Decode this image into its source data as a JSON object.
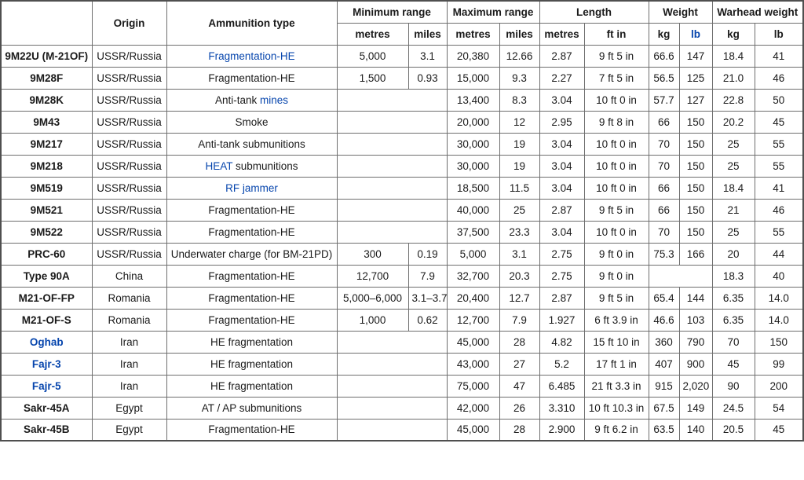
{
  "colors": {
    "link_blue": "#0645ad",
    "border_gray": "#6e6e6e",
    "outer_border": "#4f4f4f",
    "background": "#ffffff"
  },
  "header": {
    "blank": "",
    "origin": "Origin",
    "ammo_type": "Ammunition type",
    "min_range": "Minimum range",
    "max_range": "Maximum range",
    "length": "Length",
    "weight": "Weight",
    "warhead_weight": "Warhead weight",
    "sub_metres": "metres",
    "sub_miles": "miles",
    "sub_ftin": "ft in",
    "sub_kg": "kg",
    "sub_lb": "lb"
  },
  "rows": [
    {
      "name": "9M22U (M-21OF)",
      "name_link": false,
      "origin": "USSR/Russia",
      "type_parts": [
        {
          "text": "Fragmentation-HE",
          "link": true
        }
      ],
      "min": [
        "5,000",
        "3.1"
      ],
      "max": [
        "20,380",
        "12.66"
      ],
      "len": [
        "2.87",
        "9 ft 5 in"
      ],
      "wt": [
        "66.6",
        "147"
      ],
      "wh": [
        "18.4",
        "41"
      ]
    },
    {
      "name": "9M28F",
      "name_link": false,
      "origin": "USSR/Russia",
      "type_parts": [
        {
          "text": "Fragmentation-HE",
          "link": false
        }
      ],
      "min": [
        "1,500",
        "0.93"
      ],
      "max": [
        "15,000",
        "9.3"
      ],
      "len": [
        "2.27",
        "7 ft 5 in"
      ],
      "wt": [
        "56.5",
        "125"
      ],
      "wh": [
        "21.0",
        "46"
      ]
    },
    {
      "name": "9M28K",
      "name_link": false,
      "origin": "USSR/Russia",
      "type_parts": [
        {
          "text": "Anti-tank ",
          "link": false
        },
        {
          "text": "mines",
          "link": true
        }
      ],
      "min": null,
      "max": [
        "13,400",
        "8.3"
      ],
      "len": [
        "3.04",
        "10 ft 0 in"
      ],
      "wt": [
        "57.7",
        "127"
      ],
      "wh": [
        "22.8",
        "50"
      ]
    },
    {
      "name": "9M43",
      "name_link": false,
      "origin": "USSR/Russia",
      "type_parts": [
        {
          "text": "Smoke",
          "link": false
        }
      ],
      "min": null,
      "max": [
        "20,000",
        "12"
      ],
      "len": [
        "2.95",
        "9 ft 8 in"
      ],
      "wt": [
        "66",
        "150"
      ],
      "wh": [
        "20.2",
        "45"
      ]
    },
    {
      "name": "9M217",
      "name_link": false,
      "origin": "USSR/Russia",
      "type_parts": [
        {
          "text": "Anti-tank submunitions",
          "link": false
        }
      ],
      "min": null,
      "max": [
        "30,000",
        "19"
      ],
      "len": [
        "3.04",
        "10 ft 0 in"
      ],
      "wt": [
        "70",
        "150"
      ],
      "wh": [
        "25",
        "55"
      ]
    },
    {
      "name": "9M218",
      "name_link": false,
      "origin": "USSR/Russia",
      "type_parts": [
        {
          "text": "HEAT",
          "link": true
        },
        {
          "text": " submunitions",
          "link": false
        }
      ],
      "min": null,
      "max": [
        "30,000",
        "19"
      ],
      "len": [
        "3.04",
        "10 ft 0 in"
      ],
      "wt": [
        "70",
        "150"
      ],
      "wh": [
        "25",
        "55"
      ]
    },
    {
      "name": "9M519",
      "name_link": false,
      "origin": "USSR/Russia",
      "type_parts": [
        {
          "text": "RF jammer",
          "link": true
        }
      ],
      "min": null,
      "max": [
        "18,500",
        "11.5"
      ],
      "len": [
        "3.04",
        "10 ft 0 in"
      ],
      "wt": [
        "66",
        "150"
      ],
      "wh": [
        "18.4",
        "41"
      ]
    },
    {
      "name": "9M521",
      "name_link": false,
      "origin": "USSR/Russia",
      "type_parts": [
        {
          "text": "Fragmentation-HE",
          "link": false
        }
      ],
      "min": null,
      "max": [
        "40,000",
        "25"
      ],
      "len": [
        "2.87",
        "9 ft 5 in"
      ],
      "wt": [
        "66",
        "150"
      ],
      "wh": [
        "21",
        "46"
      ]
    },
    {
      "name": "9M522",
      "name_link": false,
      "origin": "USSR/Russia",
      "type_parts": [
        {
          "text": "Fragmentation-HE",
          "link": false
        }
      ],
      "min": null,
      "max": [
        "37,500",
        "23.3"
      ],
      "len": [
        "3.04",
        "10 ft 0 in"
      ],
      "wt": [
        "70",
        "150"
      ],
      "wh": [
        "25",
        "55"
      ]
    },
    {
      "name": "PRC-60",
      "name_link": false,
      "origin": "USSR/Russia",
      "type_parts": [
        {
          "text": "Underwater charge (for BM-21PD)",
          "link": false
        }
      ],
      "min": [
        "300",
        "0.19"
      ],
      "max": [
        "5,000",
        "3.1"
      ],
      "len": [
        "2.75",
        "9 ft 0 in"
      ],
      "wt": [
        "75.3",
        "166"
      ],
      "wh": [
        "20",
        "44"
      ]
    },
    {
      "name": "Type 90A",
      "name_link": false,
      "origin": "China",
      "type_parts": [
        {
          "text": "Fragmentation-HE",
          "link": false
        }
      ],
      "min": [
        "12,700",
        "7.9"
      ],
      "max": [
        "32,700",
        "20.3"
      ],
      "len": [
        "2.75",
        "9 ft 0 in"
      ],
      "wt": null,
      "wh": [
        "18.3",
        "40"
      ]
    },
    {
      "name": "M21-OF-FP",
      "name_link": false,
      "origin": "Romania",
      "type_parts": [
        {
          "text": "Fragmentation-HE",
          "link": false
        }
      ],
      "min": [
        "5,000–6,000",
        "3.1–3.7"
      ],
      "max": [
        "20,400",
        "12.7"
      ],
      "len": [
        "2.87",
        "9 ft 5 in"
      ],
      "wt": [
        "65.4",
        "144"
      ],
      "wh": [
        "6.35",
        "14.0"
      ]
    },
    {
      "name": "M21-OF-S",
      "name_link": false,
      "origin": "Romania",
      "type_parts": [
        {
          "text": "Fragmentation-HE",
          "link": false
        }
      ],
      "min": [
        "1,000",
        "0.62"
      ],
      "max": [
        "12,700",
        "7.9"
      ],
      "len": [
        "1.927",
        "6 ft 3.9 in"
      ],
      "wt": [
        "46.6",
        "103"
      ],
      "wh": [
        "6.35",
        "14.0"
      ]
    },
    {
      "name": "Oghab",
      "name_link": true,
      "origin": "Iran",
      "type_parts": [
        {
          "text": "HE fragmentation",
          "link": false
        }
      ],
      "min": null,
      "max": [
        "45,000",
        "28"
      ],
      "len": [
        "4.82",
        "15 ft 10 in"
      ],
      "wt": [
        "360",
        "790"
      ],
      "wh": [
        "70",
        "150"
      ]
    },
    {
      "name": "Fajr-3",
      "name_link": true,
      "origin": "Iran",
      "type_parts": [
        {
          "text": "HE fragmentation",
          "link": false
        }
      ],
      "min": null,
      "max": [
        "43,000",
        "27"
      ],
      "len": [
        "5.2",
        "17 ft 1 in"
      ],
      "wt": [
        "407",
        "900"
      ],
      "wh": [
        "45",
        "99"
      ]
    },
    {
      "name": "Fajr-5",
      "name_link": true,
      "origin": "Iran",
      "type_parts": [
        {
          "text": "HE fragmentation",
          "link": false
        }
      ],
      "min": null,
      "max": [
        "75,000",
        "47"
      ],
      "len": [
        "6.485",
        "21 ft 3.3 in"
      ],
      "wt": [
        "915",
        "2,020"
      ],
      "wh": [
        "90",
        "200"
      ]
    },
    {
      "name": "Sakr-45A",
      "name_link": false,
      "origin": "Egypt",
      "type_parts": [
        {
          "text": "AT / AP submunitions",
          "link": false
        }
      ],
      "min": null,
      "max": [
        "42,000",
        "26"
      ],
      "len": [
        "3.310",
        "10 ft 10.3 in"
      ],
      "wt": [
        "67.5",
        "149"
      ],
      "wh": [
        "24.5",
        "54"
      ]
    },
    {
      "name": "Sakr-45B",
      "name_link": false,
      "origin": "Egypt",
      "type_parts": [
        {
          "text": "Fragmentation-HE",
          "link": false
        }
      ],
      "min": null,
      "max": [
        "45,000",
        "28"
      ],
      "len": [
        "2.900",
        "9 ft 6.2 in"
      ],
      "wt": [
        "63.5",
        "140"
      ],
      "wh": [
        "20.5",
        "45"
      ]
    }
  ]
}
